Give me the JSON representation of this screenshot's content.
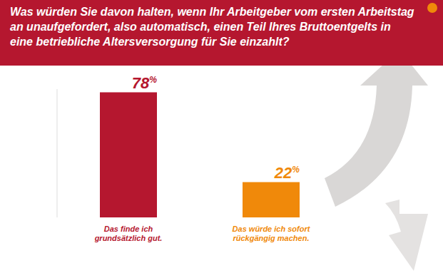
{
  "chart_data": {
    "type": "bar",
    "title": "Was würden Sie davon halten, wenn Ihr Arbeitgeber vom ersten Arbeitstag an unaufgefordert, also automatisch, einen Teil Ihres Bruttoentgelts in eine betriebliche Altersversorgung für Sie einzahlt?",
    "categories": [
      "Das finde ich grundsätzlich gut.",
      "Das würde ich sofort rückgängig machen."
    ],
    "values": [
      78,
      22
    ],
    "value_labels": [
      "78%",
      "22%"
    ],
    "colors": [
      "#b5172f",
      "#f0890a"
    ],
    "ylim": [
      0,
      80
    ],
    "data_labels": true,
    "tick_labels": "x",
    "grid": false
  }
}
